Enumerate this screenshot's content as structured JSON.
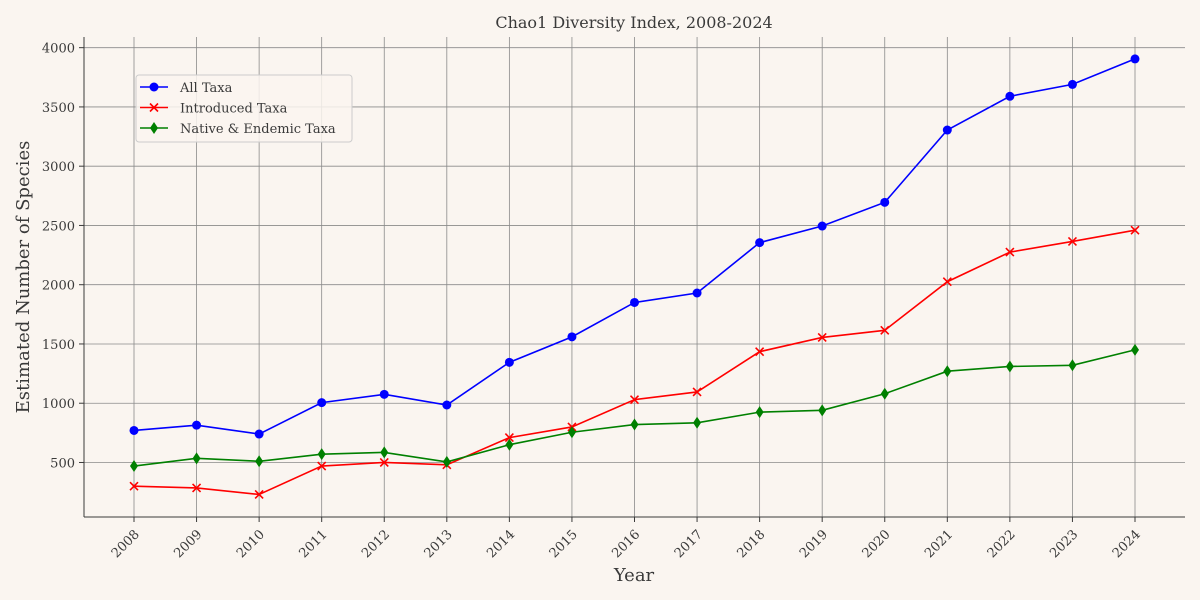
{
  "chart_data": {
    "type": "line",
    "title": "Chao1 Diversity Index, 2008-2024",
    "xlabel": "Year",
    "ylabel": "Estimated Number of Species",
    "categories": [
      "2008",
      "2009",
      "2010",
      "2011",
      "2012",
      "2013",
      "2014",
      "2015",
      "2016",
      "2017",
      "2018",
      "2019",
      "2020",
      "2021",
      "2022",
      "2023",
      "2024"
    ],
    "ylim": [
      40,
      4090
    ],
    "yticks": [
      500,
      1000,
      1500,
      2000,
      2500,
      3000,
      3500,
      4000
    ],
    "grid": true,
    "legend_position": "upper-left",
    "series": [
      {
        "name": "All Taxa",
        "color": "#0000ff",
        "marker": "circle",
        "values": [
          770,
          815,
          740,
          1005,
          1075,
          985,
          1345,
          1560,
          1850,
          1930,
          2355,
          2495,
          2695,
          3305,
          3590,
          3690,
          3905
        ]
      },
      {
        "name": "Introduced Taxa",
        "color": "#ff0000",
        "marker": "x",
        "values": [
          300,
          285,
          230,
          470,
          500,
          480,
          710,
          800,
          1030,
          1095,
          1435,
          1555,
          1615,
          2025,
          2275,
          2365,
          2460
        ]
      },
      {
        "name": "Native & Endemic Taxa",
        "color": "#008000",
        "marker": "diamond",
        "values": [
          470,
          535,
          510,
          570,
          585,
          505,
          650,
          755,
          820,
          835,
          925,
          940,
          1080,
          1270,
          1310,
          1320,
          1450
        ]
      }
    ]
  }
}
